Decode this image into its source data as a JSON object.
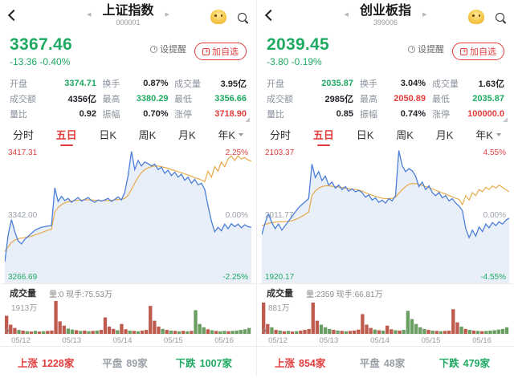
{
  "colors": {
    "green": "#1faa62",
    "red": "#e23c3c",
    "price_line": "#4b7ed8",
    "area": "#e9eff8",
    "ma": "#e7a33f",
    "vol_red": "#bf5b4e",
    "vol_green": "#6a9e62"
  },
  "panels": [
    {
      "title": "上证指数",
      "code": "000001",
      "price": "3367.46",
      "change": "-13.36  -0.40%",
      "reminder_label": "设提醒",
      "watchlist_label": "加自选",
      "stats": [
        {
          "label": "开盘",
          "value": "3374.71",
          "tone": "green"
        },
        {
          "label": "换手",
          "value": "0.87%",
          "tone": "dark"
        },
        {
          "label": "成交量",
          "value": "3.95亿",
          "tone": "dark"
        },
        {
          "label": "成交额",
          "value": "4356亿",
          "tone": "dark"
        },
        {
          "label": "最高",
          "value": "3380.29",
          "tone": "green"
        },
        {
          "label": "最低",
          "value": "3356.66",
          "tone": "green"
        },
        {
          "label": "量比",
          "value": "0.92",
          "tone": "dark"
        },
        {
          "label": "振幅",
          "value": "0.70%",
          "tone": "dark"
        },
        {
          "label": "涨停",
          "value": "3718.90",
          "tone": "red"
        }
      ],
      "tabs": [
        {
          "label": "分时"
        },
        {
          "label": "五日"
        },
        {
          "label": "日K"
        },
        {
          "label": "周K"
        },
        {
          "label": "月K"
        },
        {
          "label": "年K"
        }
      ],
      "chart": {
        "range": 2.25,
        "high_label": "3417.31",
        "high_pct": "2.25%",
        "mid_label": "3342.00",
        "mid_pct": "0.00%",
        "low_label": "3266.69",
        "low_pct": "-2.25%",
        "price": [
          -1.55,
          -0.65,
          -0.15,
          -0.55,
          -0.85,
          -0.95,
          -0.8,
          -0.7,
          -0.6,
          -0.5,
          -0.45,
          -0.4,
          -0.38,
          -0.36,
          -0.35,
          0.9,
          0.45,
          0.62,
          0.48,
          0.55,
          0.42,
          0.5,
          0.58,
          0.46,
          0.52,
          0.58,
          0.48,
          0.42,
          0.5,
          0.46,
          0.5,
          0.55,
          0.45,
          0.52,
          0.6,
          0.5,
          0.75,
          1.3,
          2.1,
          1.5,
          1.8,
          1.62,
          1.75,
          1.7,
          1.62,
          1.68,
          1.5,
          1.58,
          1.38,
          1.48,
          1.3,
          1.42,
          1.25,
          1.35,
          1.15,
          1.25,
          1.05,
          1.18,
          1.0,
          1.05,
          0.85,
          0.3,
          -0.2,
          -0.55,
          -0.4,
          -0.52,
          -0.3,
          -0.45,
          -0.28,
          -0.38,
          -0.3,
          -0.42,
          -0.32,
          -0.38,
          -0.4
        ],
        "ma": [
          -1.2,
          -1.05,
          -0.9,
          -0.82,
          -0.78,
          -0.76,
          -0.74,
          -0.72,
          -0.7,
          -0.66,
          -0.62,
          -0.58,
          -0.54,
          -0.5,
          -0.47,
          0.1,
          0.25,
          0.35,
          0.4,
          0.44,
          0.46,
          0.48,
          0.49,
          0.5,
          0.5,
          0.5,
          0.5,
          0.49,
          0.48,
          0.48,
          0.48,
          0.48,
          0.49,
          0.5,
          0.51,
          0.52,
          0.55,
          0.65,
          0.85,
          1.05,
          1.25,
          1.4,
          1.5,
          1.56,
          1.6,
          1.62,
          1.62,
          1.6,
          1.57,
          1.54,
          1.5,
          1.47,
          1.43,
          1.4,
          1.36,
          1.32,
          1.28,
          1.24,
          1.2,
          1.16,
          1.1,
          1.45,
          1.25,
          1.6,
          1.45,
          1.75,
          1.6,
          1.85,
          1.95,
          1.8,
          1.95,
          1.85,
          1.9,
          1.82,
          1.78
        ]
      },
      "volume": {
        "title": "成交量",
        "info": "量:0 现手:75.53万",
        "max_label": "1913万",
        "zero_label": "0",
        "dates": [
          "05/12",
          "05/13",
          "05/14",
          "05/15",
          "05/16"
        ],
        "bars": [
          [
            0.55,
            "r"
          ],
          [
            0.28,
            "r"
          ],
          [
            0.18,
            "r"
          ],
          [
            0.12,
            "g"
          ],
          [
            0.1,
            "r"
          ],
          [
            0.08,
            "g"
          ],
          [
            0.07,
            "r"
          ],
          [
            0.09,
            "g"
          ],
          [
            0.07,
            "r"
          ],
          [
            0.08,
            "g"
          ],
          [
            0.09,
            "r"
          ],
          [
            0.1,
            "r"
          ],
          [
            1.0,
            "r"
          ],
          [
            0.38,
            "r"
          ],
          [
            0.25,
            "r"
          ],
          [
            0.16,
            "g"
          ],
          [
            0.13,
            "g"
          ],
          [
            0.11,
            "r"
          ],
          [
            0.09,
            "g"
          ],
          [
            0.1,
            "r"
          ],
          [
            0.08,
            "g"
          ],
          [
            0.09,
            "r"
          ],
          [
            0.1,
            "g"
          ],
          [
            0.12,
            "r"
          ],
          [
            0.5,
            "r"
          ],
          [
            0.22,
            "r"
          ],
          [
            0.15,
            "r"
          ],
          [
            0.11,
            "g"
          ],
          [
            0.3,
            "r"
          ],
          [
            0.14,
            "r"
          ],
          [
            0.1,
            "g"
          ],
          [
            0.09,
            "r"
          ],
          [
            0.08,
            "g"
          ],
          [
            0.1,
            "r"
          ],
          [
            0.12,
            "r"
          ],
          [
            0.85,
            "r"
          ],
          [
            0.4,
            "r"
          ],
          [
            0.22,
            "r"
          ],
          [
            0.15,
            "g"
          ],
          [
            0.12,
            "r"
          ],
          [
            0.1,
            "g"
          ],
          [
            0.09,
            "r"
          ],
          [
            0.08,
            "g"
          ],
          [
            0.09,
            "r"
          ],
          [
            0.08,
            "g"
          ],
          [
            0.09,
            "r"
          ],
          [
            0.72,
            "g"
          ],
          [
            0.3,
            "g"
          ],
          [
            0.2,
            "g"
          ],
          [
            0.14,
            "r"
          ],
          [
            0.11,
            "g"
          ],
          [
            0.09,
            "r"
          ],
          [
            0.08,
            "g"
          ],
          [
            0.09,
            "g"
          ],
          [
            0.08,
            "r"
          ],
          [
            0.09,
            "g"
          ],
          [
            0.1,
            "g"
          ],
          [
            0.12,
            "g"
          ],
          [
            0.14,
            "g"
          ],
          [
            0.18,
            "g"
          ]
        ]
      },
      "breadth": {
        "up_label": "上涨",
        "up_count": "1228家",
        "flat_label": "平盘",
        "flat_count": "89家",
        "down_label": "下跌",
        "down_count": "1007家"
      }
    },
    {
      "title": "创业板指",
      "code": "399006",
      "price": "2039.45",
      "change": "-3.80  -0.19%",
      "reminder_label": "设提醒",
      "watchlist_label": "加自选",
      "stats": [
        {
          "label": "开盘",
          "value": "2035.87",
          "tone": "green"
        },
        {
          "label": "换手",
          "value": "3.04%",
          "tone": "dark"
        },
        {
          "label": "成交量",
          "value": "1.63亿",
          "tone": "dark"
        },
        {
          "label": "成交额",
          "value": "2985亿",
          "tone": "dark"
        },
        {
          "label": "最高",
          "value": "2050.89",
          "tone": "red"
        },
        {
          "label": "最低",
          "value": "2035.87",
          "tone": "green"
        },
        {
          "label": "量比",
          "value": "0.85",
          "tone": "dark"
        },
        {
          "label": "振幅",
          "value": "0.74%",
          "tone": "dark"
        },
        {
          "label": "涨停",
          "value": "100000.0",
          "tone": "red"
        }
      ],
      "tabs": [
        {
          "label": "分时"
        },
        {
          "label": "五日"
        },
        {
          "label": "日K"
        },
        {
          "label": "周K"
        },
        {
          "label": "月K"
        },
        {
          "label": "年K"
        }
      ],
      "chart": {
        "range": 4.55,
        "high_label": "2103.37",
        "high_pct": "4.55%",
        "mid_label": "2011.77",
        "mid_pct": "0.00%",
        "low_label": "1920.17",
        "low_pct": "-4.55%",
        "price": [
          -1.3,
          -0.5,
          0.1,
          -0.5,
          -0.9,
          -0.6,
          -1.0,
          -0.7,
          -0.4,
          -0.1,
          0.2,
          0.5,
          0.7,
          0.9,
          1.1,
          3.4,
          2.5,
          2.9,
          2.3,
          2.6,
          2.0,
          2.2,
          1.8,
          2.0,
          1.7,
          1.9,
          1.6,
          1.75,
          1.55,
          1.65,
          1.5,
          1.2,
          1.35,
          1.0,
          1.15,
          0.85,
          1.0,
          0.8,
          1.1,
          0.95,
          1.3,
          4.3,
          3.3,
          2.9,
          3.1,
          2.95,
          2.6,
          1.9,
          2.2,
          1.7,
          1.95,
          1.5,
          1.3,
          1.5,
          1.15,
          1.3,
          0.95,
          1.1,
          0.8,
          0.6,
          0.3,
          -0.9,
          -1.5,
          -1.0,
          -1.4,
          -0.8,
          -1.1,
          -0.6,
          -0.85,
          -0.5,
          -0.7,
          -0.45,
          -0.6,
          -0.35,
          -0.2
        ],
        "ma": [
          -0.7,
          -0.62,
          -0.55,
          -0.5,
          -0.47,
          -0.45,
          -0.45,
          -0.44,
          -0.42,
          -0.38,
          -0.3,
          -0.2,
          -0.08,
          0.05,
          0.2,
          1.3,
          1.6,
          1.8,
          1.9,
          1.95,
          1.95,
          1.92,
          1.9,
          1.87,
          1.84,
          1.8,
          1.77,
          1.74,
          1.7,
          1.67,
          1.6,
          1.5,
          1.4,
          1.32,
          1.25,
          1.18,
          1.13,
          1.1,
          1.1,
          1.12,
          1.2,
          1.45,
          1.7,
          1.9,
          2.05,
          2.1,
          2.1,
          2.05,
          1.98,
          1.9,
          1.82,
          1.74,
          1.66,
          1.57,
          1.48,
          1.4,
          1.3,
          1.22,
          1.12,
          1.05,
          0.7,
          1.3,
          1.0,
          1.5,
          1.3,
          1.7,
          1.55,
          1.85,
          1.7,
          1.95,
          1.8,
          2.0,
          1.85,
          1.7,
          1.55
        ]
      },
      "volume": {
        "title": "成交量",
        "info": "量:2359 现手:66.81万",
        "max_label": "881万",
        "zero_label": "0",
        "dates": [
          "05/12",
          "05/13",
          "05/14",
          "05/15",
          "05/16"
        ],
        "bars": [
          [
            0.95,
            "r"
          ],
          [
            0.3,
            "r"
          ],
          [
            0.2,
            "g"
          ],
          [
            0.12,
            "r"
          ],
          [
            0.1,
            "g"
          ],
          [
            0.08,
            "r"
          ],
          [
            0.09,
            "g"
          ],
          [
            0.07,
            "r"
          ],
          [
            0.08,
            "g"
          ],
          [
            0.1,
            "r"
          ],
          [
            0.12,
            "r"
          ],
          [
            0.15,
            "r"
          ],
          [
            0.95,
            "r"
          ],
          [
            0.4,
            "r"
          ],
          [
            0.28,
            "g"
          ],
          [
            0.2,
            "g"
          ],
          [
            0.15,
            "g"
          ],
          [
            0.12,
            "r"
          ],
          [
            0.1,
            "g"
          ],
          [
            0.09,
            "r"
          ],
          [
            0.08,
            "g"
          ],
          [
            0.09,
            "r"
          ],
          [
            0.1,
            "r"
          ],
          [
            0.13,
            "r"
          ],
          [
            0.6,
            "r"
          ],
          [
            0.28,
            "r"
          ],
          [
            0.18,
            "r"
          ],
          [
            0.13,
            "g"
          ],
          [
            0.11,
            "r"
          ],
          [
            0.1,
            "g"
          ],
          [
            0.25,
            "r"
          ],
          [
            0.14,
            "r"
          ],
          [
            0.11,
            "g"
          ],
          [
            0.1,
            "r"
          ],
          [
            0.12,
            "g"
          ],
          [
            0.7,
            "g"
          ],
          [
            0.45,
            "g"
          ],
          [
            0.3,
            "g"
          ],
          [
            0.2,
            "g"
          ],
          [
            0.15,
            "g"
          ],
          [
            0.12,
            "r"
          ],
          [
            0.1,
            "g"
          ],
          [
            0.09,
            "r"
          ],
          [
            0.08,
            "g"
          ],
          [
            0.09,
            "r"
          ],
          [
            0.1,
            "r"
          ],
          [
            0.75,
            "r"
          ],
          [
            0.35,
            "r"
          ],
          [
            0.22,
            "g"
          ],
          [
            0.15,
            "r"
          ],
          [
            0.12,
            "g"
          ],
          [
            0.1,
            "r"
          ],
          [
            0.09,
            "g"
          ],
          [
            0.08,
            "r"
          ],
          [
            0.09,
            "g"
          ],
          [
            0.1,
            "g"
          ],
          [
            0.11,
            "g"
          ],
          [
            0.13,
            "g"
          ],
          [
            0.15,
            "g"
          ],
          [
            0.2,
            "g"
          ]
        ]
      },
      "breadth": {
        "up_label": "上涨",
        "up_count": "854家",
        "flat_label": "平盘",
        "flat_count": "48家",
        "down_label": "下跌",
        "down_count": "479家"
      }
    }
  ]
}
